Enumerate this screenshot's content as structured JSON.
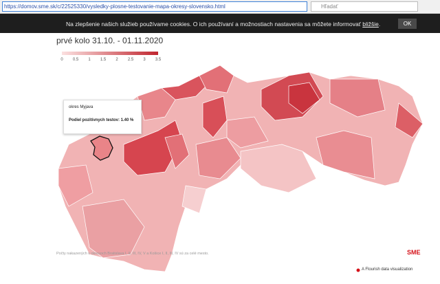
{
  "browser": {
    "url": "https://domov.sme.sk/c/22525330/vysledky-plosne-testovanie-mapa-okresy-slovensko.html",
    "search_placeholder": "Hľadať"
  },
  "cookie_banner": {
    "text": "Na zlepšenie našich služieb používame cookies. O ich používaní a možnostiach nastavenia sa môžete informovať ",
    "link": "bližšie",
    "end": ".",
    "button": "OK"
  },
  "subtitle": "prvé kolo 31.10. - 01.11.2020",
  "legend": {
    "labels": [
      "0",
      "0.5",
      "1",
      "1.5",
      "2",
      "2.5",
      "3",
      "3.5"
    ]
  },
  "tooltip": {
    "title": "okres Myjava",
    "text": "Podiel pozitívnych testov: 1.40 %"
  },
  "footnote": "Počty nakazených v okresoch Bratislava I, II, III, IV, V a Košice I, II, III, IV sú za celé mesto.",
  "logo": "SME",
  "credit": "A Flourish data visualization"
}
